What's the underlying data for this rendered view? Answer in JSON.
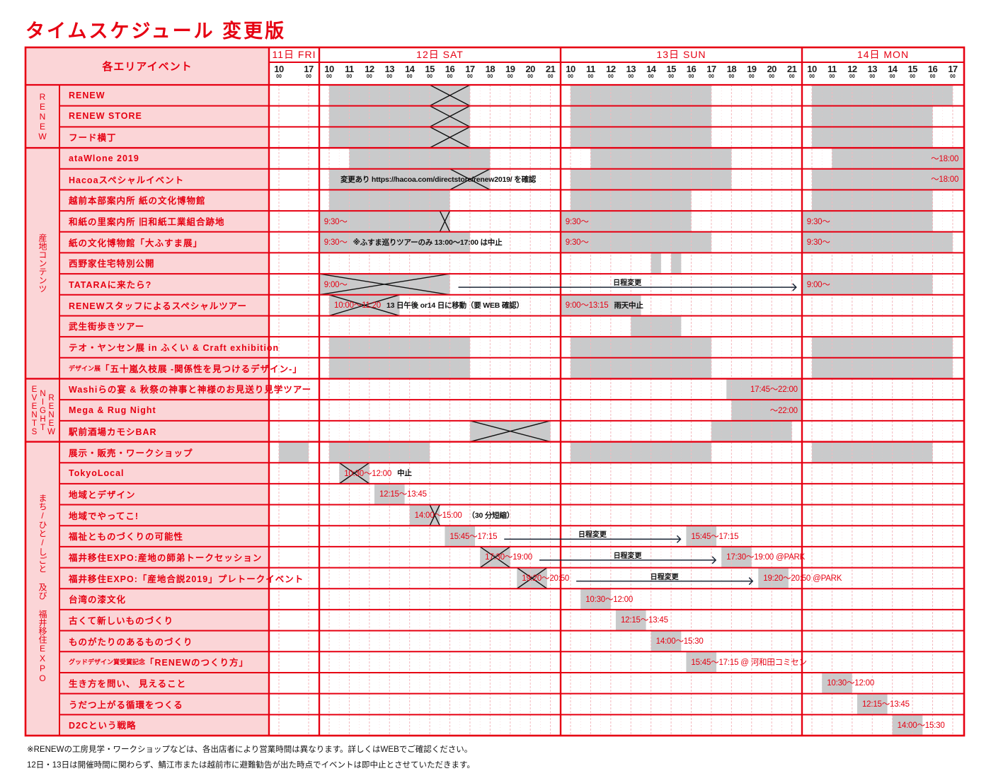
{
  "title": "タイムスケジュール 変更版",
  "header_label": "各エリアイベント",
  "minute_label": "00",
  "days": [
    {
      "label": "11日 FRI",
      "hours": [
        "10",
        "17"
      ]
    },
    {
      "label": "12日 SAT",
      "hours": [
        "10",
        "11",
        "12",
        "13",
        "14",
        "15",
        "16",
        "17",
        "18",
        "19",
        "20",
        "21"
      ]
    },
    {
      "label": "13日 SUN",
      "hours": [
        "10",
        "11",
        "12",
        "13",
        "14",
        "15",
        "16",
        "17",
        "18",
        "19",
        "20",
        "21"
      ]
    },
    {
      "label": "14日 MON",
      "hours": [
        "10",
        "11",
        "12",
        "13",
        "14",
        "15",
        "16",
        "17"
      ]
    }
  ],
  "groups": [
    {
      "labels": [
        "RENEW"
      ]
    },
    {
      "labels": [
        "産地コンテンツ"
      ]
    },
    {
      "labels": [
        "EVENTS",
        "NIGHT",
        "RENEW"
      ]
    },
    {
      "labels": [
        "まち/ひと/しごと 及び 福井移住EXPO"
      ]
    }
  ],
  "rows": [
    {
      "group": 0,
      "label": "RENEW"
    },
    {
      "group": 0,
      "label": "RENEW STORE"
    },
    {
      "group": 0,
      "label": "フード横丁"
    },
    {
      "group": 1,
      "label": "ataWlone 2019"
    },
    {
      "group": 1,
      "label": "Hacoaスペシャルイベント"
    },
    {
      "group": 1,
      "label": "越前本部案内所 紙の文化博物館"
    },
    {
      "group": 1,
      "label": "和紙の里案内所 旧和紙工業組合跡地"
    },
    {
      "group": 1,
      "label": "紙の文化博物館「大ふすま展」"
    },
    {
      "group": 1,
      "label": "西野家住宅特別公開"
    },
    {
      "group": 1,
      "label": "TATARAに来たら?"
    },
    {
      "group": 1,
      "label": "RENEWスタッフによるスペシャルツアー"
    },
    {
      "group": 1,
      "label": "武生街歩きツアー"
    },
    {
      "group": 1,
      "label": "テオ・ヤンセン展 in ふくい & Craft exhibition"
    },
    {
      "group": 1,
      "prefix": "デザイン展",
      "label": "「五十嵐久枝展 -関係性を見つけるデザイン-」"
    },
    {
      "group": 2,
      "label": "Washiらの宴 & 秋祭の神事と神様のお見送り見学ツアー"
    },
    {
      "group": 2,
      "label": "Mega & Rug Night"
    },
    {
      "group": 2,
      "label": "駅前酒場カモシBAR"
    },
    {
      "group": 3,
      "label": "展示・販売・ワークショップ"
    },
    {
      "group": 3,
      "label": "TokyoLocal"
    },
    {
      "group": 3,
      "label": "地域とデザイン"
    },
    {
      "group": 3,
      "label": "地域でやってこ!"
    },
    {
      "group": 3,
      "label": "福祉とものづくりの可能性"
    },
    {
      "group": 3,
      "label": "福井移住EXPO:産地の師弟トークセッション"
    },
    {
      "group": 3,
      "label": "福井移住EXPO:「産地合説2019」プレトークイベント"
    },
    {
      "group": 3,
      "label": "台湾の漆文化"
    },
    {
      "group": 3,
      "label": "古くて新しいものづくり"
    },
    {
      "group": 3,
      "label": "ものがたりのあるものづくり"
    },
    {
      "group": 3,
      "prefix": "グッドデザイン賞受賞記念",
      "label": "「RENEWのつくり方」"
    },
    {
      "group": 3,
      "label": "生き方を問い、 見えること"
    },
    {
      "group": 3,
      "label": "うだつ上がる循環をつくる"
    },
    {
      "group": 3,
      "label": "D2Cという戦略"
    }
  ],
  "bars": [
    {
      "row": 0,
      "day": 1,
      "start": "10:00",
      "end": "17:00",
      "cross": [
        "15:00",
        "17:00"
      ]
    },
    {
      "row": 0,
      "day": 2,
      "start": "10:00",
      "end": "17:00"
    },
    {
      "row": 0,
      "day": 3,
      "start": "10:00",
      "end": "17:00"
    },
    {
      "row": 1,
      "day": 1,
      "start": "10:00",
      "end": "17:00",
      "cross": [
        "15:00",
        "17:00"
      ]
    },
    {
      "row": 1,
      "day": 2,
      "start": "10:00",
      "end": "17:00"
    },
    {
      "row": 1,
      "day": 3,
      "start": "10:00",
      "end": "16:00"
    },
    {
      "row": 2,
      "day": 1,
      "start": "10:00",
      "end": "17:00",
      "cross": [
        "15:00",
        "17:00"
      ]
    },
    {
      "row": 2,
      "day": 2,
      "start": "10:00",
      "end": "17:00"
    },
    {
      "row": 2,
      "day": 3,
      "start": "10:00",
      "end": "16:00"
    },
    {
      "row": 3,
      "day": 1,
      "start": "11:00",
      "end": "18:00"
    },
    {
      "row": 3,
      "day": 2,
      "start": "11:00",
      "end": "18:00"
    },
    {
      "row": 3,
      "day": 3,
      "start": "11:00",
      "end": "17:30",
      "label": "～18:00",
      "label_align": "end"
    },
    {
      "row": 4,
      "day": 1,
      "start": "10:00",
      "end": "18:00",
      "cross": [
        "16:00",
        "18:00"
      ],
      "note": "変更あり https://hacoa.com/directstore/renew2019/ を確認"
    },
    {
      "row": 4,
      "day": 2,
      "start": "10:00",
      "end": "18:00"
    },
    {
      "row": 4,
      "day": 3,
      "start": "10:00",
      "end": "17:30",
      "label": "～18:00",
      "label_align": "end"
    },
    {
      "row": 5,
      "day": 1,
      "start": "10:00",
      "end": "16:00"
    },
    {
      "row": 5,
      "day": 2,
      "start": "10:00",
      "end": "16:00"
    },
    {
      "row": 5,
      "day": 3,
      "start": "10:00",
      "end": "16:00"
    },
    {
      "row": 6,
      "day": 1,
      "start": "09:30",
      "end": "16:00",
      "cross": [
        "15:30",
        "16:00"
      ],
      "label": "9:30～"
    },
    {
      "row": 6,
      "day": 2,
      "start": "09:30",
      "end": "16:00",
      "label": "9:30～"
    },
    {
      "row": 6,
      "day": 3,
      "start": "09:30",
      "end": "16:00",
      "label": "9:30～"
    },
    {
      "row": 7,
      "day": 1,
      "start": "09:30",
      "end": "17:00",
      "label": "9:30～",
      "note": "※ふすま巡りツアーのみ 13:00～17:00 は中止"
    },
    {
      "row": 7,
      "day": 2,
      "start": "09:30",
      "end": "17:00",
      "label": "9:30～"
    },
    {
      "row": 7,
      "day": 3,
      "start": "09:30",
      "end": "17:00",
      "label": "9:30～"
    },
    {
      "row": 8,
      "day": 2,
      "start": "14:00",
      "end": "14:30"
    },
    {
      "row": 8,
      "day": 2,
      "start": "15:00",
      "end": "15:30"
    },
    {
      "row": 9,
      "day": 1,
      "start": "09:30",
      "end": "16:00",
      "cross": [
        "09:30",
        "16:00"
      ],
      "label": "9:00～"
    },
    {
      "row": 9,
      "day": 3,
      "start": "09:30",
      "end": "16:00",
      "label": "9:00～"
    },
    {
      "row": 10,
      "day": 1,
      "start": "10:00",
      "end": "13:30",
      "cross": [
        "10:00",
        "13:30"
      ],
      "label": "10:00～11:20",
      "note": "13 日午後 or14 日に移動（要 WEB 確認）"
    },
    {
      "row": 10,
      "day": 2,
      "start": "09:30",
      "end": "13:30",
      "label": "9:00～13:15",
      "note": "雨天中止"
    },
    {
      "row": 11,
      "day": 2,
      "start": "13:00",
      "end": "15:30"
    },
    {
      "row": 12,
      "day": 1,
      "start": "10:00",
      "end": "17:00"
    },
    {
      "row": 12,
      "day": 2,
      "start": "10:00",
      "end": "17:00"
    },
    {
      "row": 12,
      "day": 3,
      "start": "10:00",
      "end": "17:00"
    },
    {
      "row": 13,
      "day": 1,
      "start": "10:00",
      "end": "17:00"
    },
    {
      "row": 13,
      "day": 2,
      "start": "10:00",
      "end": "17:00"
    },
    {
      "row": 13,
      "day": 3,
      "start": "10:00",
      "end": "17:00"
    },
    {
      "row": 14,
      "day": 2,
      "start": "17:45",
      "end": "21:30",
      "label": "17:45～22:00",
      "label_align": "end"
    },
    {
      "row": 15,
      "day": 2,
      "start": "18:00",
      "end": "21:30",
      "label": "～22:00",
      "label_align": "end"
    },
    {
      "row": 16,
      "day": 1,
      "start": "17:00",
      "end": "21:00",
      "cross": [
        "17:00",
        "21:00"
      ]
    },
    {
      "row": 16,
      "day": 2,
      "start": "17:00",
      "end": "21:00"
    },
    {
      "row": 17,
      "day": 0,
      "start": "10:00",
      "end": "17:00"
    },
    {
      "row": 17,
      "day": 1,
      "start": "10:00",
      "end": "15:00"
    },
    {
      "row": 17,
      "day": 2,
      "start": "10:00",
      "end": "17:00"
    },
    {
      "row": 17,
      "day": 3,
      "start": "10:00",
      "end": "16:00"
    },
    {
      "row": 18,
      "day": 1,
      "start": "10:30",
      "end": "12:00",
      "cross": [
        "10:30",
        "12:00"
      ],
      "label": "10:30～12:00",
      "note": "中止"
    },
    {
      "row": 19,
      "day": 1,
      "start": "12:15",
      "end": "13:45",
      "label": "12:15～13:45"
    },
    {
      "row": 20,
      "day": 1,
      "start": "14:00",
      "end": "15:30",
      "cross": [
        "15:00",
        "15:30"
      ],
      "label": "14:00～15:00",
      "note": "（30 分短縮）"
    },
    {
      "row": 21,
      "day": 1,
      "start": "15:45",
      "end": "17:15",
      "label": "15:45～17:15"
    },
    {
      "row": 21,
      "day": 2,
      "start": "15:45",
      "end": "17:15",
      "label": "15:45～17:15"
    },
    {
      "row": 22,
      "day": 1,
      "start": "17:30",
      "end": "19:00",
      "cross": [
        "17:30",
        "19:00"
      ],
      "label": "17:30～19:00"
    },
    {
      "row": 22,
      "day": 2,
      "start": "17:30",
      "end": "19:00",
      "label": "17:30～19:00 @PARK"
    },
    {
      "row": 23,
      "day": 1,
      "start": "19:20",
      "end": "20:50",
      "cross": [
        "19:20",
        "20:50"
      ],
      "label": "19:20～20:50"
    },
    {
      "row": 23,
      "day": 2,
      "start": "19:20",
      "end": "20:50",
      "label": "19:20～20:50 @PARK"
    },
    {
      "row": 24,
      "day": 2,
      "start": "10:30",
      "end": "12:00",
      "label": "10:30～12:00"
    },
    {
      "row": 25,
      "day": 2,
      "start": "12:15",
      "end": "13:45",
      "label": "12:15～13:45"
    },
    {
      "row": 26,
      "day": 2,
      "start": "14:00",
      "end": "15:30",
      "label": "14:00～15:30"
    },
    {
      "row": 27,
      "day": 2,
      "start": "15:45",
      "end": "17:15",
      "label": "15:45～17:15 @ 河和田コミセン"
    },
    {
      "row": 28,
      "day": 3,
      "start": "10:30",
      "end": "12:00",
      "label": "10:30～12:00"
    },
    {
      "row": 29,
      "day": 3,
      "start": "12:15",
      "end": "13:45",
      "label": "12:15～13:45"
    },
    {
      "row": 30,
      "day": 3,
      "start": "14:00",
      "end": "15:30",
      "label": "14:00～15:30"
    }
  ],
  "arrows": [
    {
      "row": 9,
      "from_day": 1,
      "to_day": 3,
      "label": "日程変更"
    },
    {
      "row": 21,
      "from_day": 1,
      "to_day": 2,
      "label": "日程変更"
    },
    {
      "row": 22,
      "from_day": 1,
      "to_day": 2,
      "label": "日程変更"
    },
    {
      "row": 23,
      "from_day": 1,
      "to_day": 2,
      "label": "日程変更"
    }
  ],
  "footer": [
    "※RENEWの工房見学・ワークショップなどは、各出店者により営業時間は異なります。詳しくはWEBでご確認ください。",
    "12日・13日は開催時間に関わらず、鯖江市または越前市に避難勧告が出た時点でイベントは即中止とさせていただきます。"
  ],
  "colors": {
    "accent": "#e60012",
    "label_bg": "#fbd5d7",
    "bar": "#c9cacb",
    "grid": "#f4b8be",
    "arrow": "#1b2636",
    "cross": "#111111"
  }
}
